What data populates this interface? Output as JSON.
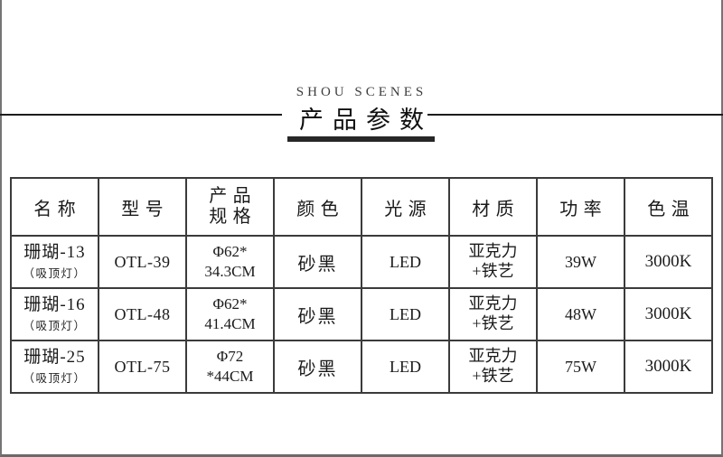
{
  "page": {
    "background": "#ffffff",
    "frame_color": "#757575"
  },
  "header": {
    "brand": "SHOU SCENES",
    "title": "产品参数",
    "rule_color": "#1c1c1c",
    "underline_color": "#272727"
  },
  "table": {
    "columns": [
      {
        "label": "名称"
      },
      {
        "label": "型号"
      },
      {
        "label": "产品规格",
        "line1": "产品",
        "line2": "规格"
      },
      {
        "label": "颜色"
      },
      {
        "label": "光源"
      },
      {
        "label": "材质"
      },
      {
        "label": "功率"
      },
      {
        "label": "色温"
      }
    ],
    "rows": [
      {
        "name": "珊瑚-13",
        "name_note": "（吸顶灯）",
        "model": "OTL-39",
        "spec_line1": "Φ62*",
        "spec_line2": "34.3CM",
        "color": "砂黑",
        "light_source": "LED",
        "material_line1": "亚克力",
        "material_line2": "+铁艺",
        "power": "39W",
        "color_temperature": "3000K"
      },
      {
        "name": "珊瑚-16",
        "name_note": "（吸顶灯）",
        "model": "OTL-48",
        "spec_line1": "Φ62*",
        "spec_line2": "41.4CM",
        "color": "砂黑",
        "light_source": "LED",
        "material_line1": "亚克力",
        "material_line2": "+铁艺",
        "power": "48W",
        "color_temperature": "3000K"
      },
      {
        "name": "珊瑚-25",
        "name_note": "（吸顶灯）",
        "model": "OTL-75",
        "spec_line1": "Φ72",
        "spec_line2": "*44CM",
        "color": "砂黑",
        "light_source": "LED",
        "material_line1": "亚克力",
        "material_line2": "+铁艺",
        "power": "75W",
        "color_temperature": "3000K"
      }
    ]
  }
}
